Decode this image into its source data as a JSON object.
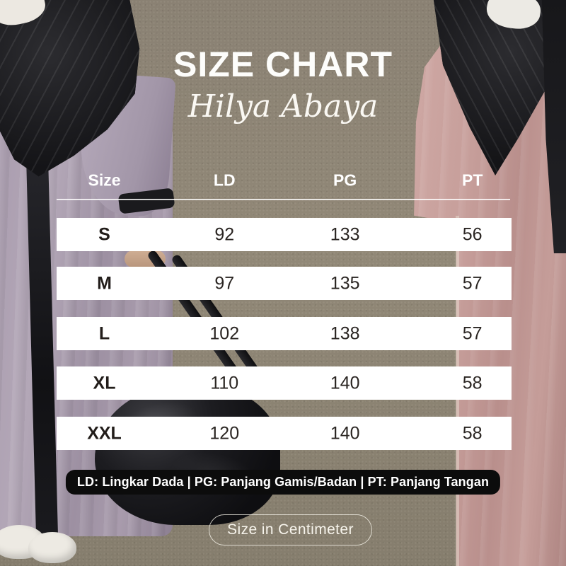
{
  "title": "SIZE CHART",
  "subtitle": "Hilya Abaya",
  "table": {
    "headers": [
      "Size",
      "LD",
      "PG",
      "PT"
    ],
    "rows": [
      [
        "S",
        "92",
        "133",
        "56"
      ],
      [
        "M",
        "97",
        "135",
        "57"
      ],
      [
        "L",
        "102",
        "138",
        "57"
      ],
      [
        "XL",
        "110",
        "140",
        "58"
      ],
      [
        "XXL",
        "120",
        "140",
        "58"
      ]
    ]
  },
  "legend": "LD: Lingkar Dada | PG: Panjang Gamis/Badan | PT: Panjang Tangan",
  "unit_note": "Size in Centimeter",
  "chart_data": {
    "type": "table",
    "title": "SIZE CHART",
    "subtitle": "Hilya Abaya",
    "columns": [
      "Size",
      "LD",
      "PG",
      "PT"
    ],
    "rows": [
      [
        "S",
        92,
        133,
        56
      ],
      [
        "M",
        97,
        135,
        57
      ],
      [
        "L",
        102,
        138,
        57
      ],
      [
        "XL",
        110,
        140,
        58
      ],
      [
        "XXL",
        120,
        140,
        58
      ]
    ],
    "units": "centimeter",
    "column_legend": {
      "LD": "Lingkar Dada",
      "PG": "Panjang Gamis/Badan",
      "PT": "Panjang Tangan"
    }
  },
  "colors": {
    "row_background": "#ffffff",
    "header_text": "#ffffff",
    "row_text": "#2a2522",
    "legend_background": "#0c0c0c",
    "legend_text": "#ffffff",
    "pill_border": "#f2efe7",
    "wall": "#8c8375",
    "abaya_left": "#a79aab",
    "abaya_right": "#c59e9a",
    "hijab": "#1b1b1e"
  }
}
